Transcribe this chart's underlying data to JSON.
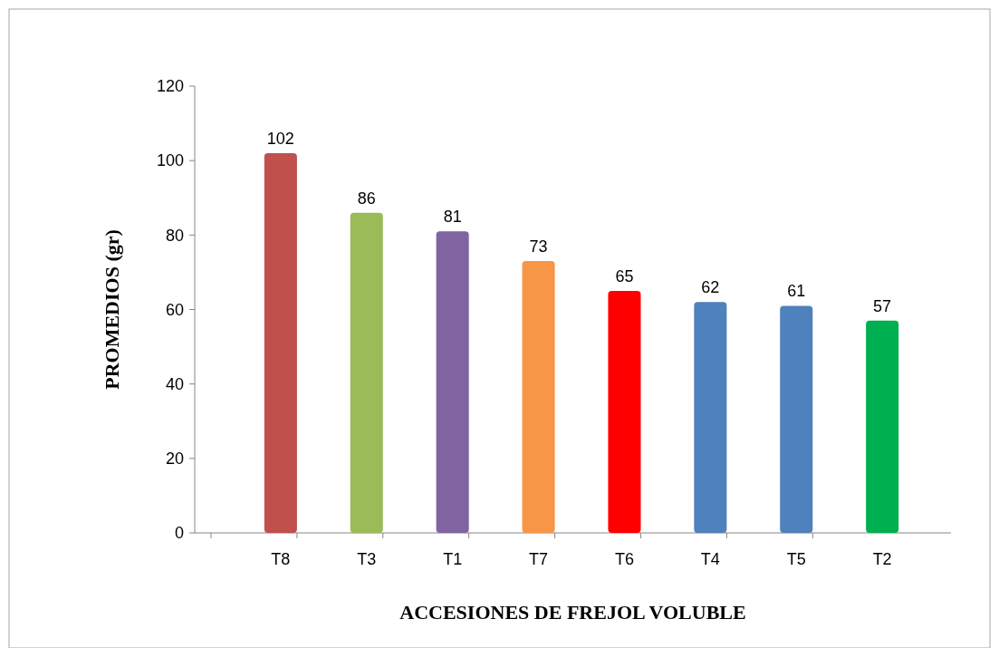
{
  "chart_data": {
    "type": "bar",
    "xlabel": "ACCESIONES DE FREJOL VOLUBLE",
    "ylabel": "PROMEDIOS (gr)",
    "categories": [
      "T8",
      "T3",
      "T1",
      "T7",
      "T6",
      "T4",
      "T5",
      "T2"
    ],
    "values": [
      102,
      86,
      81,
      73,
      65,
      62,
      61,
      57
    ],
    "colors": [
      "#c0504d",
      "#9bbb59",
      "#8064a2",
      "#f79646",
      "#ff0000",
      "#4f81bd",
      "#4f81bd",
      "#00b050"
    ],
    "ylim": [
      0,
      120
    ],
    "yticks": [
      0,
      20,
      40,
      60,
      80,
      100,
      120
    ],
    "data_labels": true,
    "grid": false
  }
}
